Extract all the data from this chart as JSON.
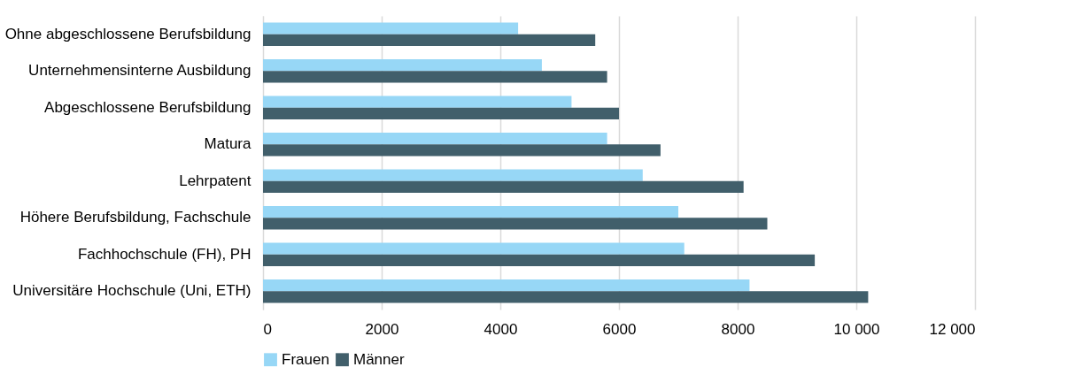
{
  "chart_data": {
    "type": "bar",
    "orientation": "horizontal",
    "categories": [
      "Ohne abgeschlossene Berufsbildung",
      "Unternehmensinterne Ausbildung",
      "Abgeschlossene Berufsbildung",
      "Matura",
      "Lehrpatent",
      "Höhere Berufsbildung, Fachschule",
      "Fachhochschule (FH), PH",
      "Universitäre Hochschule (Uni, ETH)"
    ],
    "series": [
      {
        "name": "Frauen",
        "color": "#97d7f6",
        "values": [
          4300,
          4700,
          5200,
          5800,
          6400,
          7000,
          7100,
          8200
        ]
      },
      {
        "name": "Männer",
        "color": "#415f6b",
        "values": [
          5600,
          5800,
          6000,
          6700,
          8100,
          8500,
          9300,
          10200
        ]
      }
    ],
    "xlim": [
      0,
      12000
    ],
    "xticks": [
      0,
      2000,
      4000,
      6000,
      8000,
      {
        "value": 10000,
        "label": "10 000"
      },
      {
        "value": 12000,
        "label": "12 000"
      }
    ],
    "grid": "x",
    "legend": "bottom"
  }
}
